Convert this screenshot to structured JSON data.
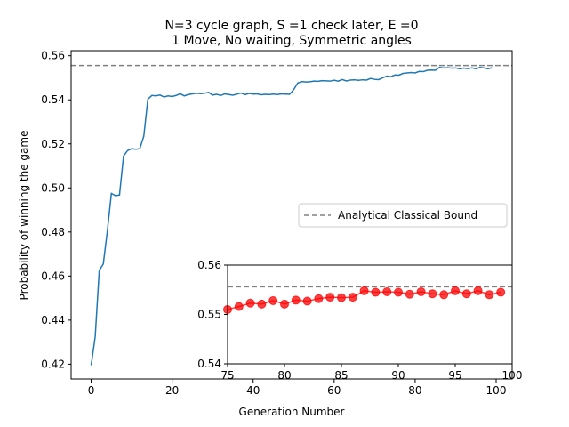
{
  "chart_data": [
    {
      "type": "line",
      "title_line1": "N=3 cycle graph,  S =1 check later, E =0",
      "title_line2": "1 Move, No waiting, Symmetric angles",
      "xlabel": "Generation Number",
      "ylabel": "Probability of winning the game",
      "xlim": [
        -4.95,
        103.95
      ],
      "ylim": [
        0.4133,
        0.5623
      ],
      "xticks": [
        0,
        20,
        40,
        60,
        80,
        100
      ],
      "yticks": [
        0.42,
        0.44,
        0.46,
        0.48,
        0.5,
        0.52,
        0.54,
        0.56
      ],
      "ytick_labels": [
        "0.42",
        "0.44",
        "0.46",
        "0.48",
        "0.50",
        "0.52",
        "0.54",
        "0.56"
      ],
      "series": [
        {
          "name": "",
          "color": "#1f77b4",
          "x": [
            0,
            1,
            2,
            3,
            4,
            5,
            6,
            7,
            8,
            9,
            10,
            11,
            12,
            13,
            14,
            15,
            16,
            17,
            18,
            19,
            20,
            21,
            22,
            23,
            24,
            25,
            26,
            27,
            28,
            29,
            30,
            31,
            32,
            33,
            34,
            35,
            36,
            37,
            38,
            39,
            40,
            41,
            42,
            43,
            44,
            45,
            46,
            47,
            48,
            49,
            50,
            51,
            52,
            53,
            54,
            55,
            56,
            57,
            58,
            59,
            60,
            61,
            62,
            63,
            64,
            65,
            66,
            67,
            68,
            69,
            70,
            71,
            72,
            73,
            74,
            75,
            76,
            77,
            78,
            79,
            80,
            81,
            82,
            83,
            84,
            85,
            86,
            87,
            88,
            89,
            90,
            91,
            92,
            93,
            94,
            95,
            96,
            97,
            98,
            99
          ],
          "values": [
            0.4195,
            0.4325,
            0.4625,
            0.4655,
            0.4805,
            0.4975,
            0.4965,
            0.4968,
            0.5145,
            0.517,
            0.5178,
            0.5176,
            0.5178,
            0.5235,
            0.5403,
            0.542,
            0.5418,
            0.5422,
            0.5413,
            0.5418,
            0.5415,
            0.542,
            0.5428,
            0.5418,
            0.5424,
            0.5427,
            0.543,
            0.5428,
            0.543,
            0.5434,
            0.5422,
            0.5425,
            0.542,
            0.5427,
            0.5424,
            0.5421,
            0.5426,
            0.5431,
            0.5424,
            0.5429,
            0.5426,
            0.5427,
            0.5423,
            0.5425,
            0.5424,
            0.5426,
            0.5424,
            0.5427,
            0.5426,
            0.5425,
            0.5446,
            0.5476,
            0.5483,
            0.5481,
            0.5482,
            0.5485,
            0.5484,
            0.5487,
            0.5486,
            0.5485,
            0.5489,
            0.5485,
            0.5492,
            0.5486,
            0.549,
            0.5491,
            0.5489,
            0.5491,
            0.549,
            0.5497,
            0.5493,
            0.5492,
            0.55,
            0.5508,
            0.5505,
            0.5513,
            0.5512,
            0.552,
            0.5522,
            0.5524,
            0.5522,
            0.5529,
            0.5528,
            0.5534,
            0.5535,
            0.5534,
            0.5547,
            0.5545,
            0.5546,
            0.5544,
            0.5545,
            0.5541,
            0.5544,
            0.5542,
            0.5545,
            0.5541,
            0.5547,
            0.5545,
            0.5541,
            0.5546
          ]
        }
      ],
      "bound": {
        "name": "Analytical Classical Bound",
        "value": 0.5556,
        "color": "#808080",
        "style": "dashed"
      },
      "legend": "center-right",
      "grid": false
    },
    {
      "type": "scatter",
      "inset": true,
      "xlim": [
        75,
        100
      ],
      "ylim": [
        0.54,
        0.56
      ],
      "xticks": [
        75,
        80,
        85,
        90,
        95,
        100
      ],
      "yticks": [
        0.54,
        0.55,
        0.56
      ],
      "ytick_labels": [
        "0.54",
        "0.55",
        "0.56"
      ],
      "series": [
        {
          "name": "",
          "color": "#ff0000",
          "x": [
            75,
            76,
            77,
            78,
            79,
            80,
            81,
            82,
            83,
            84,
            85,
            86,
            87,
            88,
            89,
            90,
            91,
            92,
            93,
            94,
            95,
            96,
            97,
            98,
            99
          ],
          "values": [
            0.551,
            0.5516,
            0.5523,
            0.5521,
            0.5528,
            0.5521,
            0.5529,
            0.5527,
            0.5532,
            0.5535,
            0.5534,
            0.5535,
            0.5548,
            0.5545,
            0.5546,
            0.5545,
            0.5541,
            0.5546,
            0.5542,
            0.554,
            0.5548,
            0.5542,
            0.5548,
            0.554,
            0.5545
          ]
        }
      ],
      "bound": {
        "value": 0.5556,
        "color": "#808080",
        "style": "dashed"
      }
    }
  ]
}
